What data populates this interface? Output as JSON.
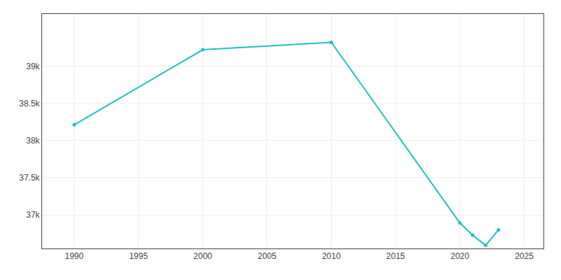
{
  "chart_data": {
    "type": "line",
    "x": [
      1990,
      2000,
      2010,
      2020,
      2021,
      2022,
      2023
    ],
    "values": [
      38211,
      39220,
      39320,
      36893,
      36728,
      36592,
      36800
    ],
    "color": "#20BFBF",
    "marker": "circle",
    "xlim": [
      1987.5,
      2026.5
    ],
    "xticks": [
      1990,
      1995,
      2000,
      2005,
      2010,
      2015,
      2020,
      2025
    ],
    "ylim": [
      36550,
      39700
    ],
    "yticks": [
      {
        "value": 37000,
        "label": "37k"
      },
      {
        "value": 37500,
        "label": "37.5k"
      },
      {
        "value": 38000,
        "label": "38k"
      },
      {
        "value": 38500,
        "label": "38.5k"
      },
      {
        "value": 39000,
        "label": "39k"
      }
    ],
    "grid": true
  }
}
